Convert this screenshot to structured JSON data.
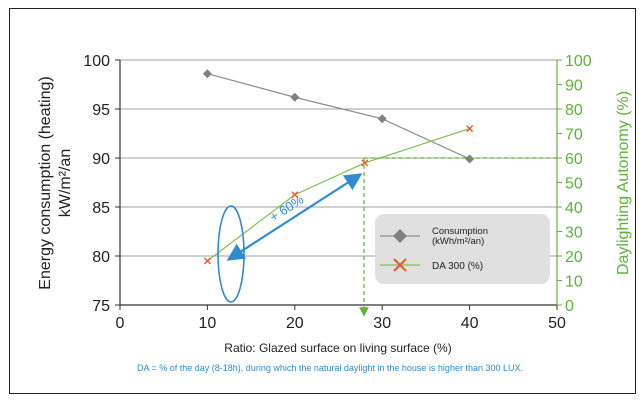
{
  "colors": {
    "consumption": "#8c8c8c",
    "consumption_marker": "#808080",
    "da": "#7dc24b",
    "da_marker": "#e8582f",
    "right_axis": "#5db33b",
    "annotation": "#2e8ccf",
    "footnote": "#2e8ccf",
    "legend_bg": "#e0e0e0"
  },
  "chart_data": {
    "type": "line",
    "xlabel": "Ratio: Glazed surface on living surface (%)",
    "ylabel_line1": "Energy consumption (heating)",
    "ylabel_line2": "kW/m²/an",
    "y2label": "Daylighting Autonomy (%)",
    "xlim": [
      0,
      50
    ],
    "ylim": [
      75,
      100
    ],
    "y2lim": [
      0,
      100
    ],
    "x_ticks": [
      "0",
      "10",
      "20",
      "30",
      "40",
      "50"
    ],
    "y_ticks": [
      "75",
      "80",
      "85",
      "90",
      "95",
      "100"
    ],
    "y2_ticks": [
      "0",
      "10",
      "20",
      "30",
      "40",
      "50",
      "60",
      "70",
      "80",
      "90",
      "100"
    ],
    "grid": "horizontal",
    "legend_position": "right",
    "series": [
      {
        "name": "Consumption",
        "name_line1": "Consumption",
        "name_line2": "(kWh/m²/an)",
        "axis": "left",
        "marker": "diamond",
        "x": [
          10,
          20,
          30,
          40
        ],
        "y": [
          98.6,
          96.2,
          94.0,
          89.9
        ]
      },
      {
        "name": "DA 300 (%)",
        "axis": "right",
        "marker": "x",
        "x": [
          10,
          20,
          28,
          40
        ],
        "y": [
          18,
          45,
          58,
          72
        ]
      }
    ],
    "annotation": "+ 60%",
    "footnote": "DA = % of the day (8-18h), during which the natural daylight in the house is higher than 300 LUX."
  }
}
